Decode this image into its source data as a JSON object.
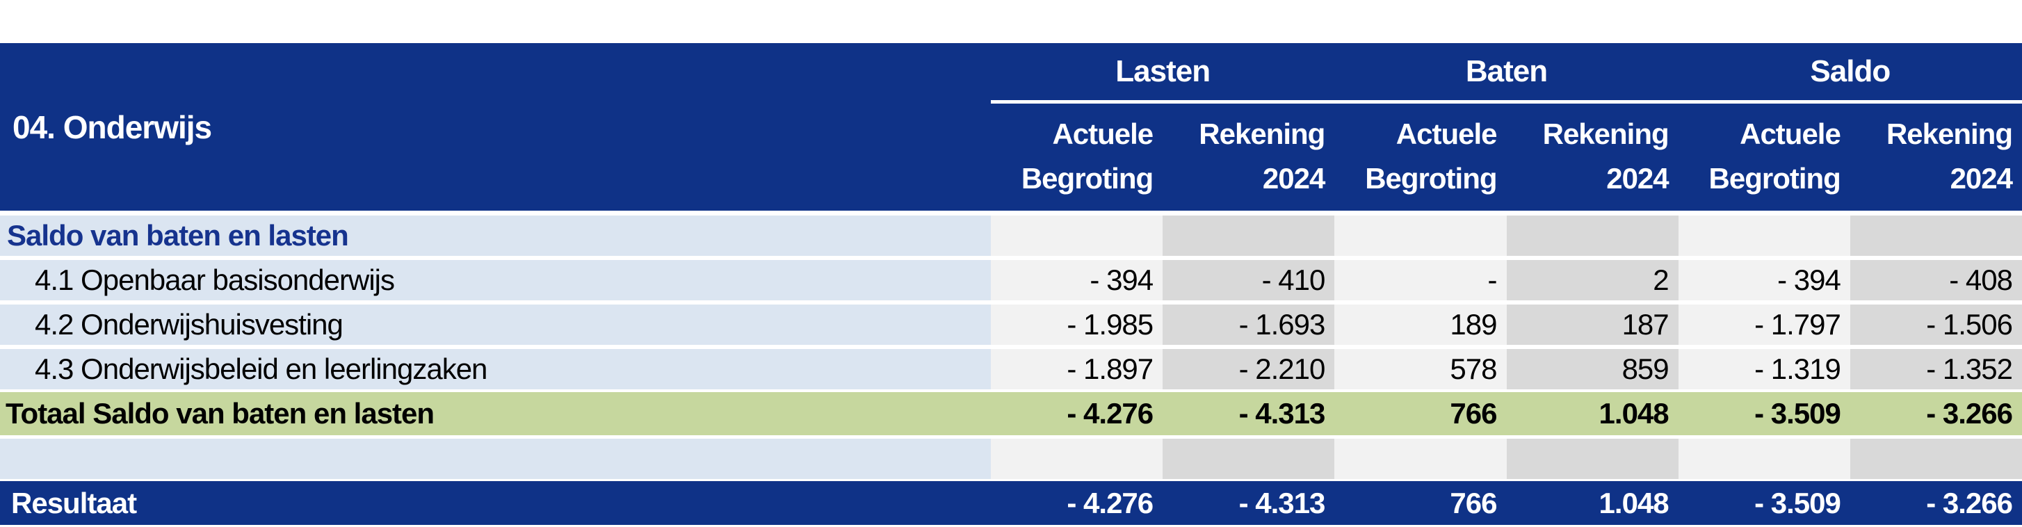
{
  "header": {
    "title": "04. Onderwijs",
    "groups": [
      "Lasten",
      "Baten",
      "Saldo"
    ],
    "columns": [
      {
        "line1": "Actuele",
        "line2": "Begroting"
      },
      {
        "line1": "Rekening",
        "line2": "2024"
      },
      {
        "line1": "Actuele",
        "line2": "Begroting"
      },
      {
        "line1": "Rekening",
        "line2": "2024"
      },
      {
        "line1": "Actuele",
        "line2": "Begroting"
      },
      {
        "line1": "Rekening",
        "line2": "2024"
      }
    ]
  },
  "rows": [
    {
      "label": "Saldo van baten en lasten",
      "cells": [
        "",
        "",
        "",
        "",
        "",
        ""
      ]
    },
    {
      "label": "4.1 Openbaar basisonderwijs",
      "cells": [
        "- 394",
        "- 410",
        "-",
        "2",
        "- 394",
        "- 408"
      ]
    },
    {
      "label": "4.2 Onderwijshuisvesting",
      "cells": [
        "- 1.985",
        "- 1.693",
        "189",
        "187",
        "- 1.797",
        "- 1.506"
      ]
    },
    {
      "label": "4.3 Onderwijsbeleid en leerlingzaken",
      "cells": [
        "- 1.897",
        "- 2.210",
        "578",
        "859",
        "- 1.319",
        "- 1.352"
      ]
    },
    {
      "label": "Totaal Saldo van baten en lasten",
      "cells": [
        "- 4.276",
        "- 4.313",
        "766",
        "1.048",
        "- 3.509",
        "- 3.266"
      ]
    },
    {
      "label": "",
      "cells": [
        "",
        "",
        "",
        "",
        "",
        ""
      ]
    },
    {
      "label": "Resultaat",
      "cells": [
        "- 4.276",
        "- 4.313",
        "766",
        "1.048",
        "- 3.509",
        "- 3.266"
      ]
    }
  ],
  "colors": {
    "header_blue": "#0f3287",
    "label_light_blue": "#dbe5f1",
    "column_light_gray": "#f2f2f2",
    "column_dark_gray": "#d9d9d9",
    "total_green": "#c6d79e",
    "section_text_blue": "#16338e",
    "header_text": "#ffffff",
    "body_text": "#000000"
  }
}
